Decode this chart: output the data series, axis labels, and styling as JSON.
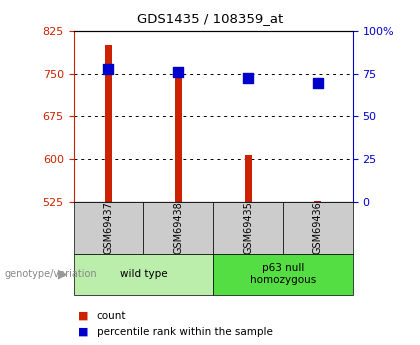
{
  "title": "GDS1435 / 108359_at",
  "samples": [
    "GSM69437",
    "GSM69438",
    "GSM69435",
    "GSM69436"
  ],
  "counts": [
    800,
    762,
    607,
    527
  ],
  "percentiles": [
    77.5,
    76.0,
    72.5,
    69.5
  ],
  "ylim_left": [
    525,
    825
  ],
  "ylim_right": [
    0,
    100
  ],
  "yticks_left": [
    525,
    600,
    675,
    750,
    825
  ],
  "yticks_right": [
    0,
    25,
    50,
    75,
    100
  ],
  "ytick_labels_right": [
    "0",
    "25",
    "50",
    "75",
    "100%"
  ],
  "grid_lines": [
    600,
    675,
    750
  ],
  "bar_color": "#cc2200",
  "dot_color": "#0000cc",
  "group1_label": "wild type",
  "group1_color": "#bbeeaa",
  "group2_label": "p63 null\nhomozygous",
  "group2_color": "#55dd44",
  "left_axis_color": "#cc2200",
  "right_axis_color": "#0000cc",
  "bar_width": 0.1,
  "dot_size": 45,
  "xtick_bg": "#cccccc",
  "plot_bg": "#ffffff",
  "genotype_label": "genotype/variation"
}
